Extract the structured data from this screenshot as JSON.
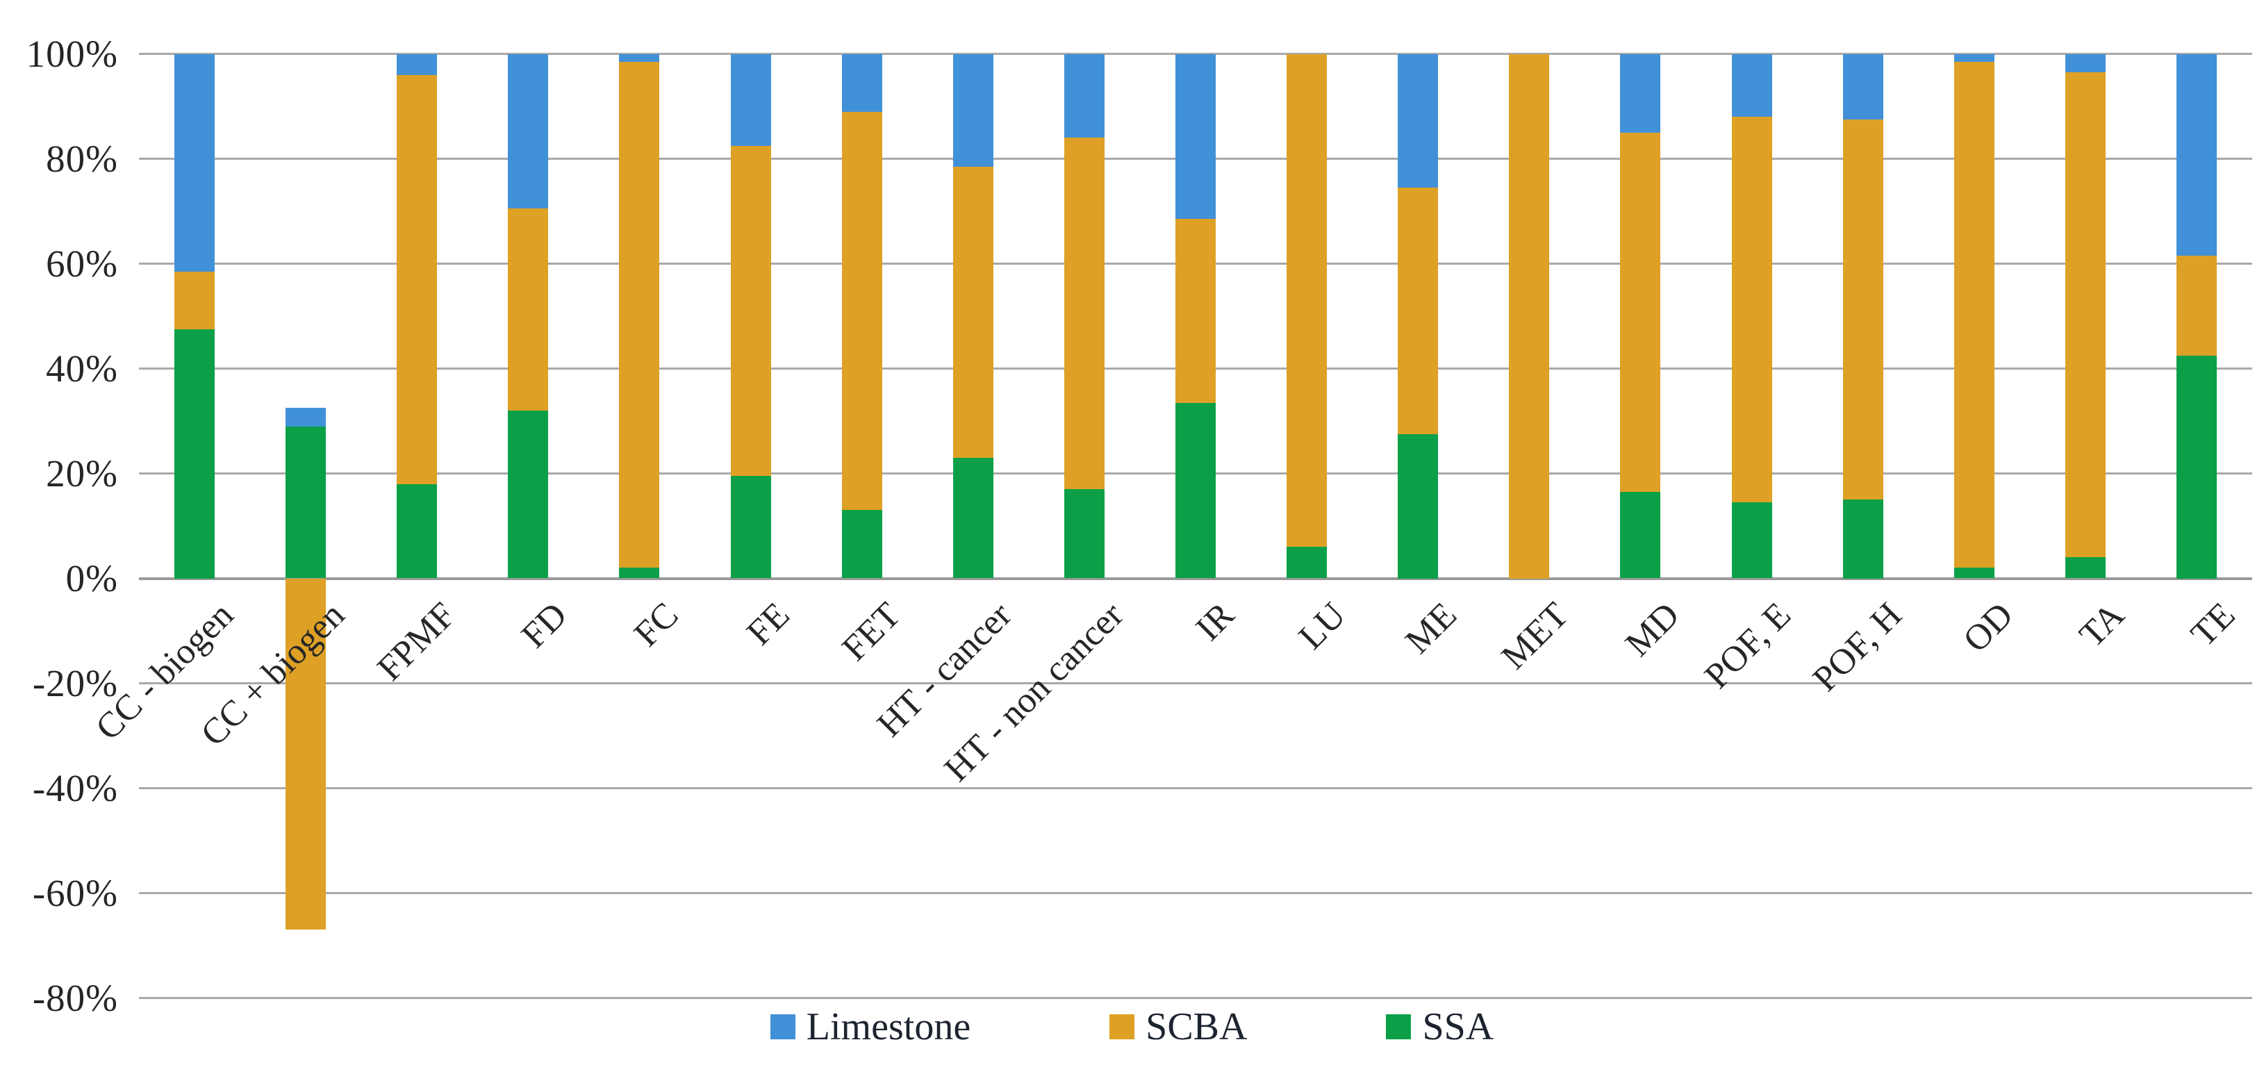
{
  "chart_data": {
    "type": "bar",
    "stacked": true,
    "stack_mode": "percent_with_negatives",
    "title": "",
    "xlabel": "",
    "ylabel": "",
    "categories": [
      "CC - biogen",
      "CC + biogen",
      "FPMF",
      "FD",
      "FC",
      "FE",
      "FET",
      "HT - cancer",
      "HT - non cancer",
      "IR",
      "LU",
      "ME",
      "MET",
      "MD",
      "POF, E",
      "POF, H",
      "OD",
      "TA",
      "TE"
    ],
    "series": [
      {
        "name": "Limestone",
        "color": "#4191d9",
        "values": [
          41.5,
          3.5,
          4,
          29.5,
          1.5,
          17.5,
          11,
          21.5,
          16,
          31.5,
          0,
          25.5,
          0,
          15,
          12,
          12.5,
          1.5,
          3.5,
          38.5
        ]
      },
      {
        "name": "SCBA",
        "color": "#dea126",
        "values": [
          11,
          -67,
          78,
          38.5,
          96.5,
          63,
          76,
          55.5,
          67,
          35,
          94,
          47,
          100,
          68.5,
          73.5,
          72.5,
          96.5,
          92.5,
          19
        ]
      },
      {
        "name": "SSA",
        "color": "#0ba047",
        "values": [
          47.5,
          29,
          18,
          32,
          2,
          19.5,
          13,
          23,
          17,
          33.5,
          6,
          27.5,
          0,
          16.5,
          14.5,
          15,
          2,
          4,
          42.5
        ]
      }
    ],
    "stack_order_bottom_to_top": [
      "SSA",
      "SCBA",
      "Limestone"
    ],
    "y_ticks": [
      "100%",
      "80%",
      "60%",
      "40%",
      "20%",
      "0%",
      "-20%",
      "-40%",
      "-60%",
      "-80%"
    ],
    "y_tick_values": [
      100,
      80,
      60,
      40,
      20,
      0,
      -20,
      -40,
      -60,
      -80
    ],
    "ylim": [
      -80,
      100
    ],
    "grid": true,
    "legend_position": "bottom",
    "legend": [
      "Limestone",
      "SCBA",
      "SSA"
    ]
  },
  "colors": {
    "background": "#ffffff",
    "gridline": "#a9a9a9",
    "axis_text": "#262626",
    "legend_text": "#1d2430",
    "limestone_blue": "#4191d9",
    "scba_orange": "#dea126",
    "ssa_green": "#0ba047"
  }
}
